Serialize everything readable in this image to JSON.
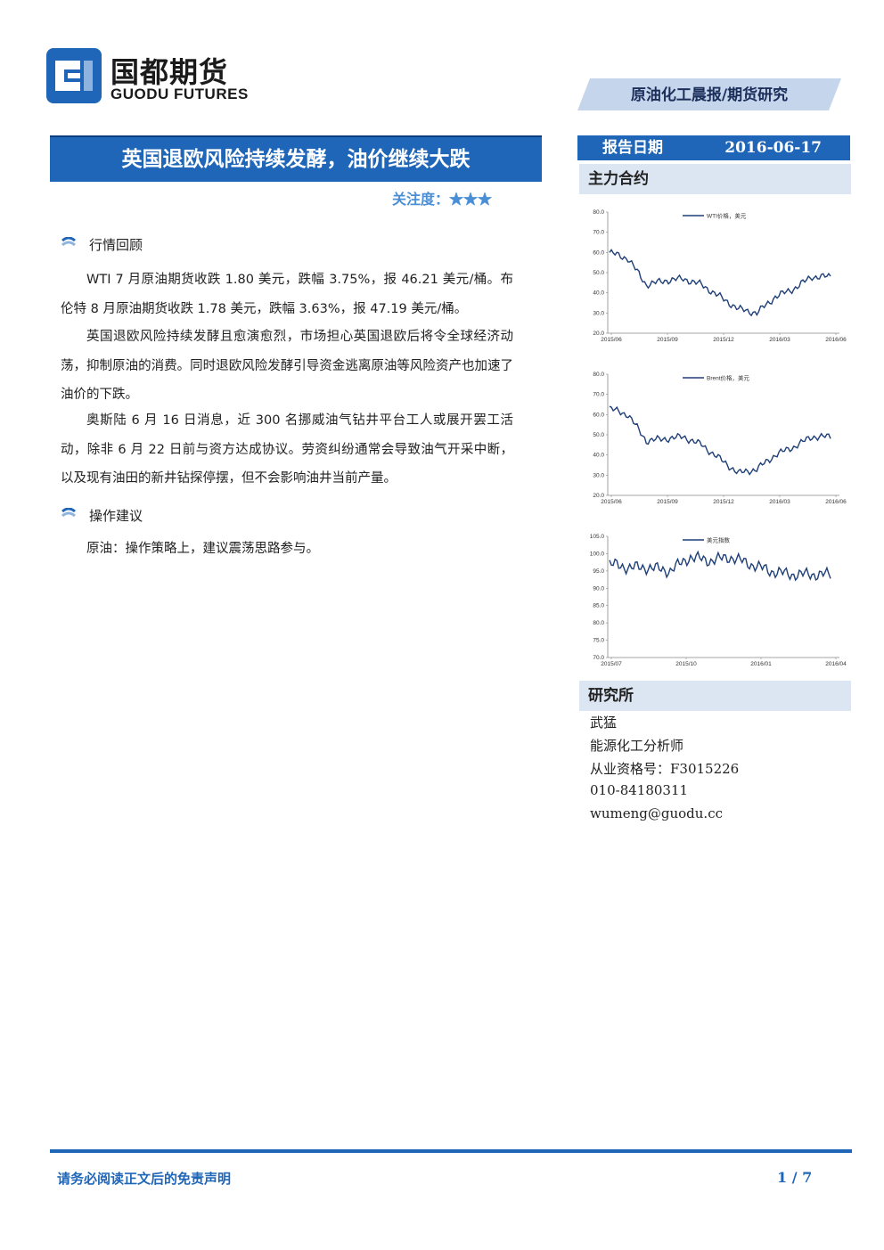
{
  "header": {
    "logo_cn": "国都期货",
    "logo_en": "GUODU FUTURES",
    "report_type": "原油化工晨报/期货研究"
  },
  "title": "英国退欧风险持续发酵，油价继续大跌",
  "attention": {
    "label": "关注度：",
    "stars": "★★★"
  },
  "sections": [
    {
      "heading": "行情回顾",
      "paragraphs": [
        "WTI 7 月原油期货收跌 1.80 美元，跌幅 3.75%，报 46.21 美元/桶。布伦特 8 月原油期货收跌 1.78 美元，跌幅 3.63%，报 47.19 美元/桶。",
        "英国退欧风险持续发酵且愈演愈烈，市场担心英国退欧后将令全球经济动荡，抑制原油的消费。同时退欧风险发酵引导资金逃离原油等风险资产也加速了油价的下跌。",
        "奥斯陆 6 月 16 日消息，近 300 名挪威油气钻井平台工人或展开罢工活动，除非 6 月 22 日前与资方达成协议。劳资纠纷通常会导致油气开采中断，以及现有油田的新井钻探停摆，但不会影响油井当前产量。"
      ]
    },
    {
      "heading": "操作建议",
      "paragraphs": [
        "原油：操作策略上，建议震荡思路参与。"
      ]
    }
  ],
  "sidebar": {
    "date_label": "报告日期",
    "date_value": "2016-06-17",
    "main_contract_heading": "主力合约",
    "research_heading": "研究所",
    "contact": {
      "name": "武猛",
      "title": "能源化工分析师",
      "license": "从业资格号：F3015226",
      "phone": "010-84180311",
      "email": "wumeng@guodu.cc"
    }
  },
  "colors": {
    "brand_blue": "#1f66b8",
    "line_navy": "#1f3f77",
    "panel_bg": "#dce6f2"
  },
  "chart_data": [
    {
      "type": "line",
      "legend": "WTI价格，美元",
      "ylim": [
        20,
        80
      ],
      "yticks": [
        "20.0",
        "30.0",
        "40.0",
        "50.0",
        "60.0",
        "70.0",
        "80.0"
      ],
      "xticks": [
        "2015/06",
        "2015/09",
        "2015/12",
        "2016/03",
        "2016/06"
      ],
      "x": [
        "2015/06",
        "2015/07",
        "2015/08",
        "2015/09",
        "2015/10",
        "2015/11",
        "2015/12",
        "2016/01",
        "2016/02",
        "2016/03",
        "2016/04",
        "2016/05",
        "2016/06"
      ],
      "values": [
        60,
        57,
        44,
        46,
        47,
        44,
        38,
        32,
        30,
        38,
        42,
        48,
        48
      ]
    },
    {
      "type": "line",
      "legend": "Brent价格，美元",
      "ylim": [
        20,
        80
      ],
      "yticks": [
        "20.0",
        "30.0",
        "40.0",
        "50.0",
        "60.0",
        "70.0",
        "80.0"
      ],
      "xticks": [
        "2015/06",
        "2015/09",
        "2015/12",
        "2016/03",
        "2016/06"
      ],
      "x": [
        "2015/06",
        "2015/07",
        "2015/08",
        "2015/09",
        "2015/10",
        "2015/11",
        "2015/12",
        "2016/01",
        "2016/02",
        "2016/03",
        "2016/04",
        "2016/05",
        "2016/06"
      ],
      "values": [
        63,
        60,
        47,
        48,
        49,
        45,
        38,
        31,
        33,
        40,
        44,
        49,
        49
      ]
    },
    {
      "type": "line",
      "legend": "美元指数",
      "ylim": [
        70,
        105
      ],
      "yticks": [
        "70.0",
        "75.0",
        "80.0",
        "85.0",
        "90.0",
        "95.0",
        "100.0",
        "105.0"
      ],
      "xticks": [
        "2015/07",
        "2015/10",
        "2016/01",
        "2016/04"
      ],
      "x": [
        "2015/07",
        "2015/08",
        "2015/09",
        "2015/10",
        "2015/11",
        "2015/12",
        "2016/01",
        "2016/02",
        "2016/03",
        "2016/04",
        "2016/05",
        "2016/06"
      ],
      "values": [
        97,
        96,
        96,
        95,
        99,
        98,
        99,
        97,
        95,
        94,
        94,
        94
      ]
    }
  ],
  "footer": {
    "disclaimer": "请务必阅读正文后的免责声明",
    "page": "1 / 7"
  }
}
